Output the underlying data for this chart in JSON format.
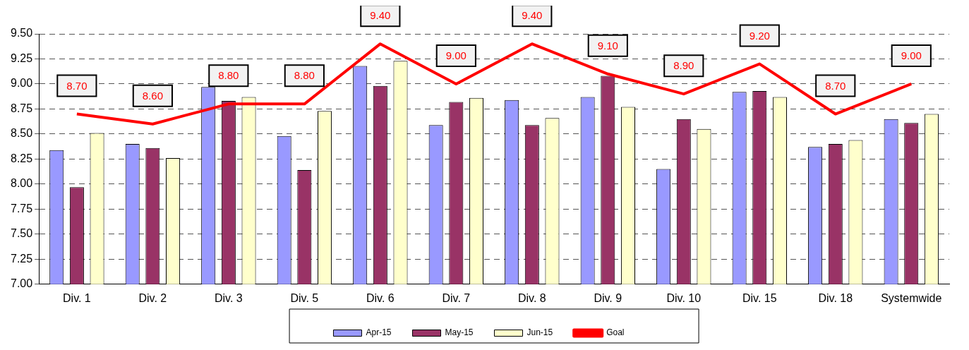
{
  "chart_data": {
    "type": "bar",
    "categories": [
      "Div. 1",
      "Div. 2",
      "Div. 3",
      "Div. 5",
      "Div. 6",
      "Div. 7",
      "Div. 8",
      "Div. 9",
      "Div. 10",
      "Div. 15",
      "Div. 18",
      "Systemwide"
    ],
    "series": [
      {
        "name": "Apr-15",
        "color": "#9999ff",
        "values": [
          8.34,
          8.4,
          8.97,
          8.48,
          9.18,
          8.59,
          8.84,
          8.87,
          8.15,
          8.92,
          8.37,
          8.65
        ]
      },
      {
        "name": "May-15",
        "color": "#993366",
        "values": [
          7.97,
          8.36,
          8.83,
          8.14,
          8.98,
          8.82,
          8.59,
          9.08,
          8.65,
          8.93,
          8.4,
          8.61
        ]
      },
      {
        "name": "Jun-15",
        "color": "#ffffcc",
        "values": [
          8.51,
          8.26,
          8.87,
          8.73,
          9.23,
          8.86,
          8.66,
          8.77,
          8.55,
          8.87,
          8.44,
          8.7
        ]
      },
      {
        "name": "Goal",
        "type": "line",
        "color": "#ff0000",
        "values": [
          8.7,
          8.6,
          8.8,
          8.8,
          9.4,
          9.0,
          9.4,
          9.1,
          8.9,
          9.2,
          8.7,
          9.0
        ],
        "value_labels": [
          "8.70",
          "8.60",
          "8.80",
          "8.80",
          "9.40",
          "9.00",
          "9.40",
          "9.10",
          "8.90",
          "9.20",
          "8.70",
          "9.00"
        ]
      }
    ],
    "ylim": [
      7,
      9.5
    ],
    "yticks": [
      {
        "value": 7,
        "label": "7.00"
      },
      {
        "value": 7.25,
        "label": "7.25"
      },
      {
        "value": 7.5,
        "label": "7.50"
      },
      {
        "value": 7.75,
        "label": "7.75"
      },
      {
        "value": 8,
        "label": "8.00"
      },
      {
        "value": 8.25,
        "label": "8.25"
      },
      {
        "value": 8.5,
        "label": "8.50"
      },
      {
        "value": 8.75,
        "label": "8.75"
      },
      {
        "value": 9,
        "label": "9.00"
      },
      {
        "value": 9.25,
        "label": "9.25"
      },
      {
        "value": 9.5,
        "label": "9.50"
      }
    ],
    "grid": "y",
    "legend": "bottom",
    "marker": "none"
  }
}
